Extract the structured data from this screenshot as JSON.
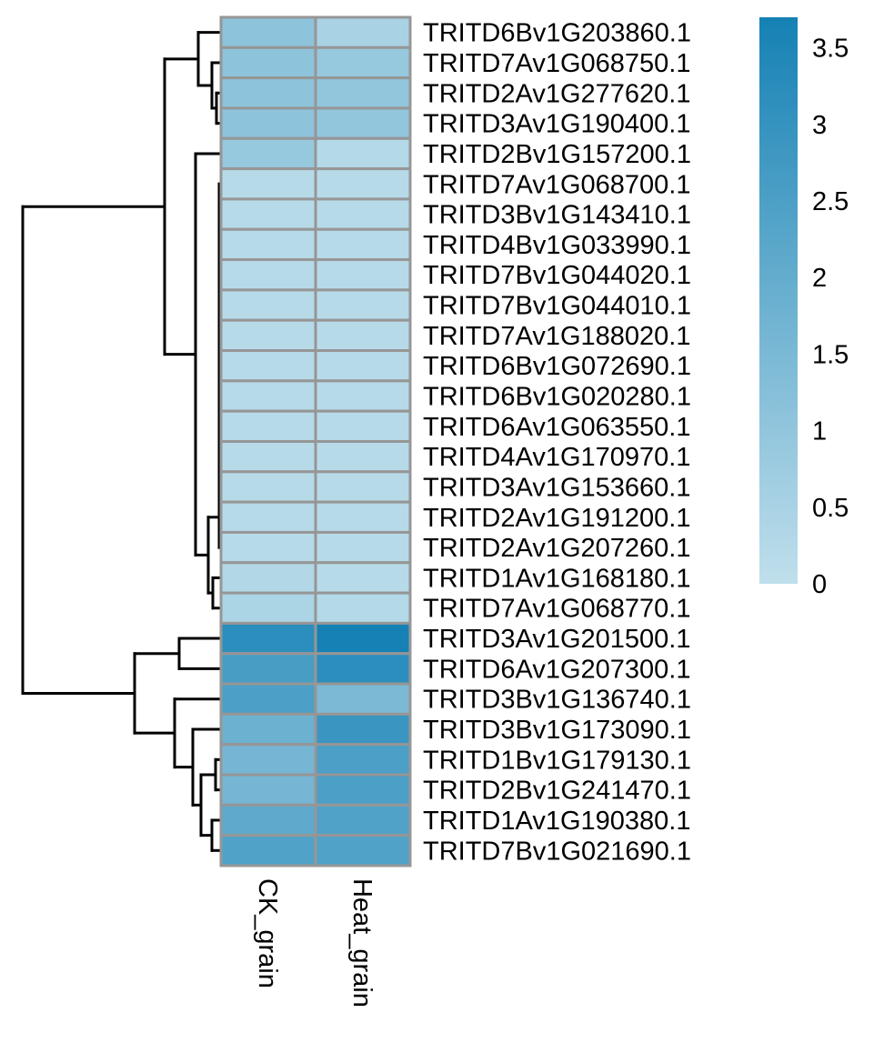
{
  "chart_data": {
    "type": "heatmap",
    "title": "",
    "columns": [
      "CK_grain",
      "Heat_grain"
    ],
    "rows": [
      "TRITD6Bv1G203860.1",
      "TRITD7Av1G068750.1",
      "TRITD2Av1G277620.1",
      "TRITD3Av1G190400.1",
      "TRITD2Bv1G157200.1",
      "TRITD7Av1G068700.1",
      "TRITD3Bv1G143410.1",
      "TRITD4Bv1G033990.1",
      "TRITD7Bv1G044020.1",
      "TRITD7Bv1G044010.1",
      "TRITD7Av1G188020.1",
      "TRITD6Bv1G072690.1",
      "TRITD6Bv1G020280.1",
      "TRITD6Av1G063550.1",
      "TRITD4Av1G170970.1",
      "TRITD3Av1G153660.1",
      "TRITD2Av1G191200.1",
      "TRITD2Av1G207260.1",
      "TRITD1Av1G168180.1",
      "TRITD7Av1G068770.1",
      "TRITD3Av1G201500.1",
      "TRITD6Av1G207300.1",
      "TRITD3Bv1G136740.1",
      "TRITD3Bv1G173090.1",
      "TRITD1Bv1G179130.1",
      "TRITD2Bv1G241470.1",
      "TRITD1Av1G190380.1",
      "TRITD7Bv1G021690.1"
    ],
    "values": [
      [
        1.1,
        0.5
      ],
      [
        1.1,
        0.9
      ],
      [
        1.1,
        1.0
      ],
      [
        1.1,
        1.0
      ],
      [
        0.9,
        0.25
      ],
      [
        0.2,
        0.2
      ],
      [
        0.2,
        0.2
      ],
      [
        0.2,
        0.2
      ],
      [
        0.2,
        0.2
      ],
      [
        0.2,
        0.2
      ],
      [
        0.2,
        0.2
      ],
      [
        0.2,
        0.2
      ],
      [
        0.2,
        0.2
      ],
      [
        0.2,
        0.2
      ],
      [
        0.2,
        0.2
      ],
      [
        0.2,
        0.2
      ],
      [
        0.2,
        0.2
      ],
      [
        0.2,
        0.2
      ],
      [
        0.3,
        0.2
      ],
      [
        0.45,
        0.25
      ],
      [
        3.2,
        3.7
      ],
      [
        2.6,
        3.2
      ],
      [
        2.5,
        1.5
      ],
      [
        1.8,
        2.9
      ],
      [
        1.6,
        2.5
      ],
      [
        1.6,
        2.5
      ],
      [
        2.1,
        2.4
      ],
      [
        2.4,
        2.4
      ]
    ],
    "color_scale": {
      "min": 0,
      "max": 3.7,
      "low_color": "#c0dfec",
      "high_color": "#1581b4"
    },
    "legend": {
      "ticks": [
        "0",
        "0.5",
        "1",
        "1.5",
        "2",
        "2.5",
        "3",
        "3.5"
      ],
      "placement": "top-right"
    },
    "row_dendrogram": true,
    "grid_color": "#969696"
  }
}
